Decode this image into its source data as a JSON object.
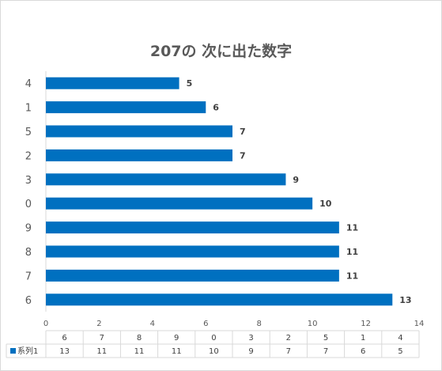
{
  "chart_data": {
    "type": "bar",
    "orientation": "horizontal",
    "title": "207の 次に出た数字",
    "categories": [
      "4",
      "1",
      "5",
      "2",
      "3",
      "0",
      "9",
      "8",
      "7",
      "6"
    ],
    "values": [
      5,
      6,
      7,
      7,
      9,
      10,
      11,
      11,
      11,
      13
    ],
    "xlim": [
      0,
      14
    ],
    "xticks": [
      0,
      2,
      4,
      6,
      8,
      10,
      12,
      14
    ],
    "bar_color": "#0070c0",
    "legend_position": "table",
    "data_table": {
      "series_name": "系列1",
      "categories": [
        "6",
        "7",
        "8",
        "9",
        "0",
        "3",
        "2",
        "5",
        "1",
        "4"
      ],
      "values": [
        13,
        11,
        11,
        11,
        10,
        9,
        7,
        7,
        6,
        5
      ]
    }
  }
}
